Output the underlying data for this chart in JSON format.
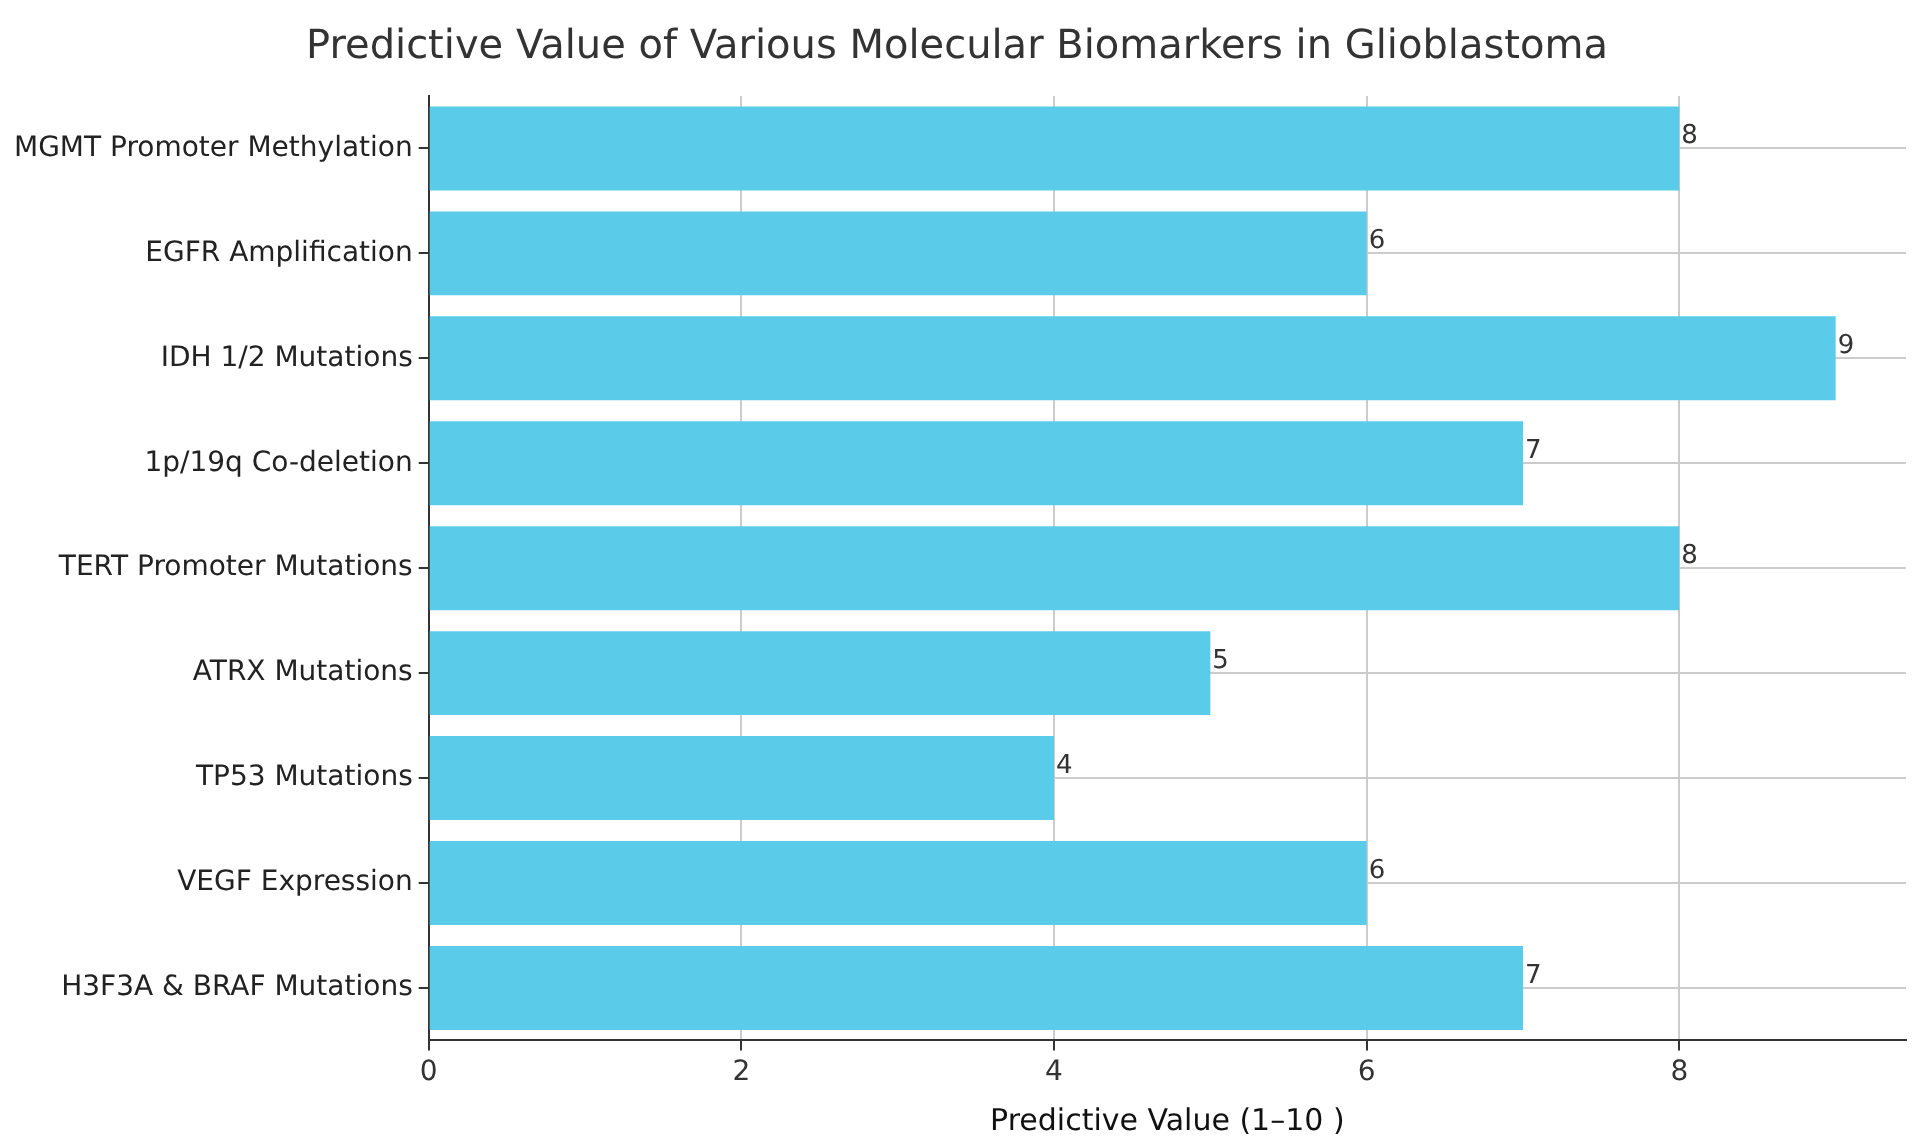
{
  "chart_data": {
    "type": "bar",
    "orientation": "horizontal",
    "title": "Predictive Value of Various Molecular Biomarkers in Glioblastoma",
    "xlabel": "Predictive Value (1–10 )",
    "categories": [
      "MGMT Promoter Methylation",
      "EGFR Amplification",
      "IDH 1/2 Mutations",
      "1p/19q Co-deletion",
      "TERT Promoter Mutations",
      "ATRX Mutations",
      "TP53 Mutations",
      "VEGF Expression",
      "H3F3A & BRAF Mutations"
    ],
    "values": [
      8,
      6,
      9,
      7,
      8,
      5,
      4,
      6,
      7
    ],
    "color": "#5bcbea",
    "xlim": [
      0,
      9.45
    ],
    "xticks": [
      0,
      2,
      4,
      6,
      8
    ],
    "grid": true,
    "data_labels": true
  }
}
